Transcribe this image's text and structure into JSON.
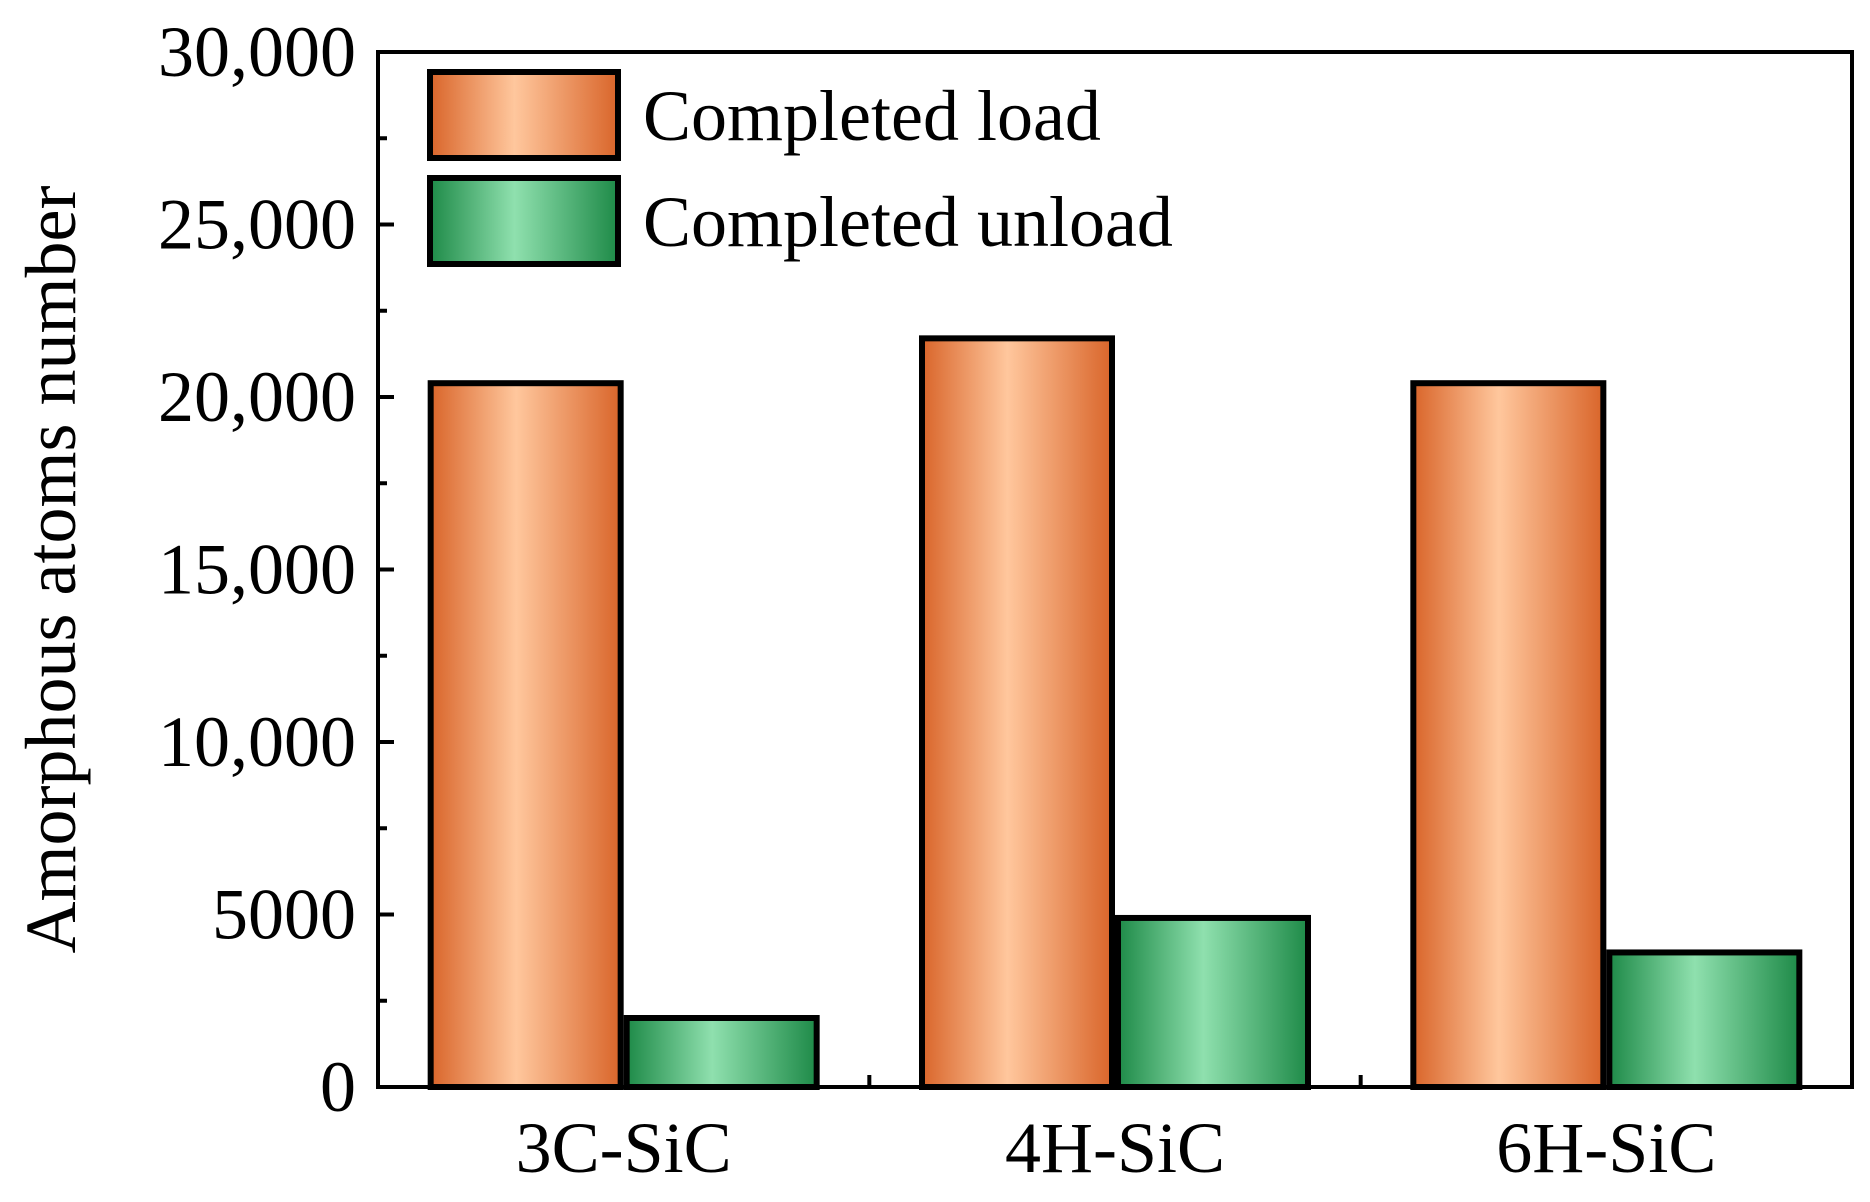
{
  "chart_data": {
    "type": "bar",
    "title": "",
    "xlabel": "",
    "ylabel": "Amorphous atoms number",
    "categories": [
      "3C-SiC",
      "4H-SiC",
      "6H-SiC"
    ],
    "series": [
      {
        "name": "Completed load",
        "values": [
          20400,
          21700,
          20400
        ],
        "color": "#f08a4b",
        "color_light": "#ffc79d",
        "color_dark": "#d9652a"
      },
      {
        "name": "Completed unload",
        "values": [
          2000,
          4900,
          3900
        ],
        "color": "#3bb36a",
        "color_light": "#8fe0ae",
        "color_dark": "#1e8a48"
      }
    ],
    "ylim": [
      0,
      30000
    ],
    "yticks": [
      0,
      5000,
      10000,
      15000,
      20000,
      25000,
      30000
    ],
    "ytick_labels": [
      "0",
      "5000",
      "10,000",
      "15,000",
      "20,000",
      "25,000",
      "30,000"
    ],
    "grid": false,
    "legend_position": "top-left"
  }
}
